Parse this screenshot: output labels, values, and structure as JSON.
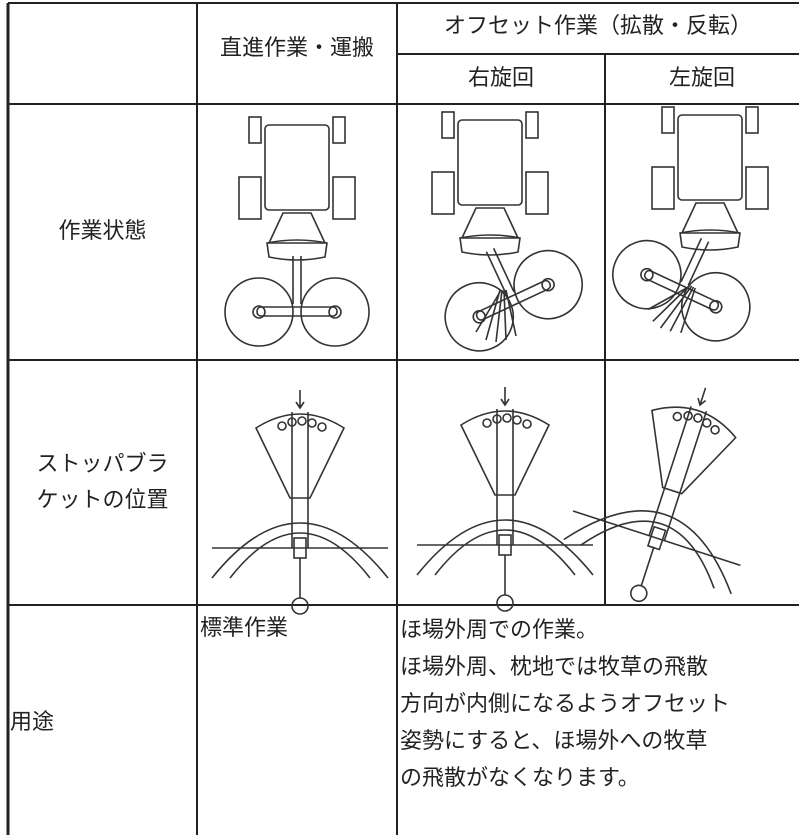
{
  "table": {
    "header": {
      "straight": "直進作業・運搬",
      "offset": "オフセット作業（拡散・反転）",
      "right": "右旋回",
      "left": "左旋回"
    },
    "rows": [
      {
        "label": [
          "作業状態"
        ]
      },
      {
        "label": [
          "ストッパブラ",
          "ケットの位置"
        ]
      },
      {
        "label": [
          "用途"
        ],
        "standard": "標準作業",
        "offset_lines": [
          "ほ場外周での作業。",
          "ほ場外周、枕地では牧草の飛散",
          "方向が内側になるようオフセット",
          "姿勢にすると、ほ場外への牧草",
          "の飛散がなくなります。"
        ]
      }
    ]
  }
}
